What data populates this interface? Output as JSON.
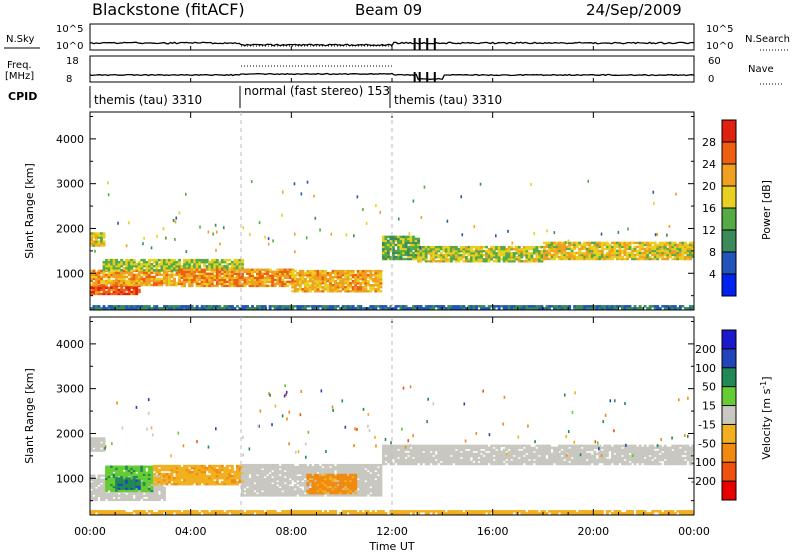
{
  "header": {
    "station": "Blackstone (fitACF)",
    "beam": "Beam 09",
    "date": "24/Sep/2009"
  },
  "noise_panel": {
    "left_label": "N.Sky",
    "right_label": "N.Search",
    "y_ticks_left": [
      "10^5",
      "10^0"
    ],
    "y_ticks_right": [
      "10^5",
      "10^0"
    ]
  },
  "freq_panel": {
    "left_label_1": "Freq.",
    "left_label_2": "[MHz]",
    "right_label": "Nave",
    "y_ticks_left": [
      "18",
      "8"
    ],
    "y_ticks_right": [
      "60",
      "0"
    ]
  },
  "cpid_panel": {
    "label": "CPID",
    "segments": [
      {
        "label": "themis (tau) 3310",
        "start_hour": 0,
        "end_hour": 6
      },
      {
        "label": "normal (fast stereo) 153",
        "start_hour": 6,
        "end_hour": 12
      },
      {
        "label": "themis (tau) 3310",
        "start_hour": 12,
        "end_hour": 24
      }
    ]
  },
  "power_panel": {
    "ylabel": "Slant Range [km]",
    "y_ticks": [
      "1000",
      "2000",
      "3000",
      "4000"
    ],
    "colorbar_label": "Power [dB]",
    "colorbar_ticks": [
      "4",
      "8",
      "12",
      "16",
      "20",
      "24",
      "28"
    ],
    "colorbar_colors": [
      "#0022ee",
      "#2255bb",
      "#3a8a5a",
      "#55aa44",
      "#e8d020",
      "#f0a020",
      "#ee6010",
      "#e02010"
    ]
  },
  "velocity_panel": {
    "ylabel": "Slant Range [km]",
    "y_ticks": [
      "1000",
      "2000",
      "3000",
      "4000"
    ],
    "colorbar_label": "Velocity [m s-1]",
    "colorbar_label_parts": {
      "main": "Velocity [m s",
      "sup": "-1",
      "end": "]"
    },
    "colorbar_ticks": [
      "-200",
      "-100",
      "-50",
      "-15",
      "15",
      "50",
      "100",
      "200"
    ],
    "colorbar_colors": [
      "#e80000",
      "#f05010",
      "#f08a10",
      "#f0b020",
      "#c8c8c0",
      "#66cc33",
      "#228855",
      "#2244bb",
      "#1a1acc"
    ]
  },
  "x_axis": {
    "label": "Time UT",
    "ticks": [
      "00:00",
      "04:00",
      "08:00",
      "12:00",
      "16:00",
      "20:00",
      "00:00"
    ]
  },
  "chart_data": [
    {
      "type": "heatmap",
      "title": "Power",
      "xlabel": "Time UT",
      "ylabel": "Slant Range [km]",
      "xlim": [
        0,
        24
      ],
      "ylim": [
        180,
        4600
      ],
      "colorbar": {
        "label": "Power [dB]",
        "range": [
          0,
          32
        ]
      },
      "regions": [
        {
          "t0": 0.0,
          "t1": 0.6,
          "r0": 1600,
          "r1": 1900,
          "power": 18
        },
        {
          "t0": 0.0,
          "t1": 2.0,
          "r0": 520,
          "r1": 720,
          "power": 27
        },
        {
          "t0": 0.0,
          "t1": 3.5,
          "r0": 720,
          "r1": 1050,
          "power": 22
        },
        {
          "t0": 0.5,
          "t1": 6.0,
          "r0": 1050,
          "r1": 1300,
          "power": 16
        },
        {
          "t0": 3.5,
          "t1": 8.0,
          "r0": 700,
          "r1": 1100,
          "power": 23
        },
        {
          "t0": 8.0,
          "t1": 11.5,
          "r0": 580,
          "r1": 1050,
          "power": 21
        },
        {
          "t0": 11.6,
          "t1": 13.0,
          "r0": 1300,
          "r1": 1800,
          "power": 14
        },
        {
          "t0": 13.0,
          "t1": 18.0,
          "r0": 1250,
          "r1": 1600,
          "power": 17
        },
        {
          "t0": 18.0,
          "t1": 24.0,
          "r0": 1300,
          "r1": 1700,
          "power": 19
        },
        {
          "t0": 0.0,
          "t1": 24.0,
          "r0": 200,
          "r1": 270,
          "power": 8
        }
      ]
    },
    {
      "type": "heatmap",
      "title": "Velocity",
      "xlabel": "Time UT",
      "ylabel": "Slant Range [km]",
      "xlim": [
        0,
        24
      ],
      "ylim": [
        180,
        4600
      ],
      "colorbar": {
        "label": "Velocity [m s-1]",
        "range": [
          -250,
          250
        ]
      },
      "regions": [
        {
          "t0": 0.0,
          "t1": 0.6,
          "r0": 1600,
          "r1": 1900,
          "velocity": 0
        },
        {
          "t0": 0.0,
          "t1": 3.0,
          "r0": 500,
          "r1": 1050,
          "velocity": 0
        },
        {
          "t0": 0.6,
          "t1": 2.5,
          "r0": 700,
          "r1": 1250,
          "velocity": 40
        },
        {
          "t0": 1.0,
          "t1": 2.0,
          "r0": 750,
          "r1": 1000,
          "velocity": 90
        },
        {
          "t0": 2.5,
          "t1": 6.0,
          "r0": 850,
          "r1": 1300,
          "velocity": -40
        },
        {
          "t0": 6.0,
          "t1": 11.5,
          "r0": 600,
          "r1": 1300,
          "velocity": 0
        },
        {
          "t0": 8.6,
          "t1": 10.5,
          "r0": 650,
          "r1": 1100,
          "velocity": -60
        },
        {
          "t0": 11.6,
          "t1": 24.0,
          "r0": 1300,
          "r1": 1750,
          "velocity": 0
        },
        {
          "t0": 0.0,
          "t1": 24.0,
          "r0": 200,
          "r1": 270,
          "velocity": -30
        }
      ]
    }
  ]
}
